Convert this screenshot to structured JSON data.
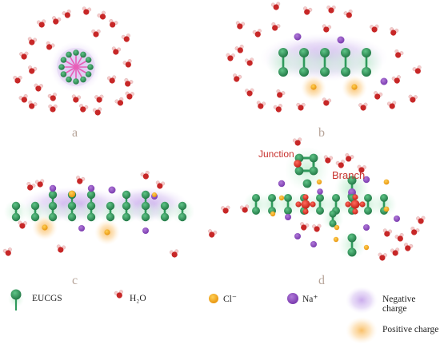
{
  "panels": {
    "a": {
      "label": "a"
    },
    "b": {
      "label": "b"
    },
    "c": {
      "label": "c"
    },
    "d": {
      "label": "d",
      "junction_label": "Junction",
      "branch_label": "Branch"
    }
  },
  "legend": {
    "eucgs": {
      "label": "EUCGS",
      "icon": "eucgs-icon"
    },
    "water": {
      "label": "H₂O",
      "icon": "water-molecule-icon"
    },
    "chloride": {
      "label": "Cl⁻",
      "icon": "chloride-ion-icon",
      "color": "#f2a81d"
    },
    "sodium": {
      "label": "Na⁺",
      "icon": "sodium-ion-icon",
      "color": "#8e4fc0"
    },
    "negative": {
      "label": "Negative charge",
      "icon": "negative-charge-glow",
      "color": "#c9a8e8"
    },
    "positive": {
      "label": "Positive charge",
      "icon": "positive-charge-glow",
      "color": "#fbcf8c"
    }
  },
  "colors": {
    "eucgs_green": "#2f9a5c",
    "glow_green": "#bfe8cd",
    "center_pink": "#e85fb8",
    "oxygen_red": "#cc2a2a",
    "hydrogen_pink": "#f3c1c1",
    "junction_red": "#e03a2a"
  }
}
